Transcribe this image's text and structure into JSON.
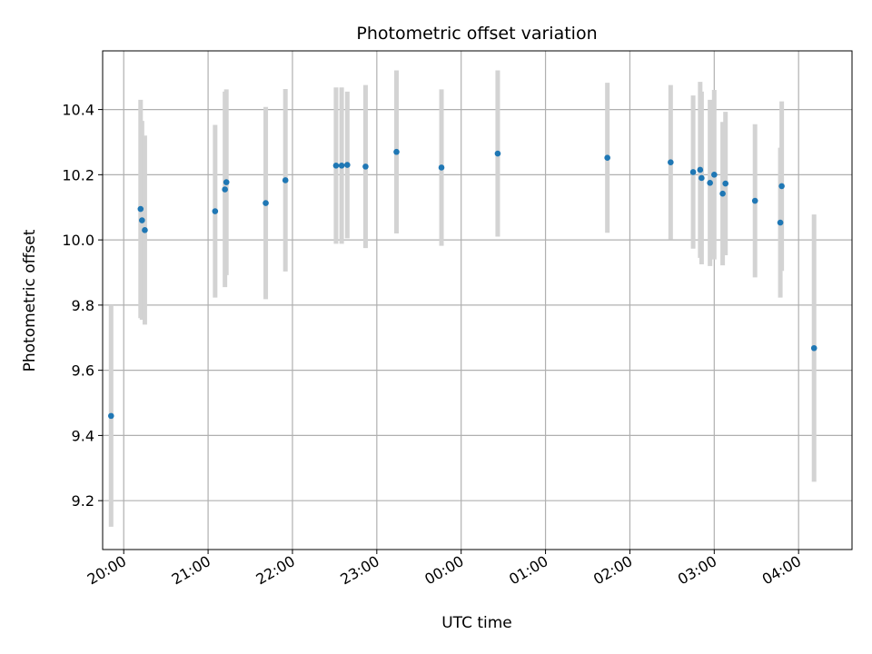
{
  "chart_data": {
    "type": "scatter",
    "title": "Photometric offset variation",
    "xlabel": "UTC time",
    "ylabel": "Photometric offset",
    "x_is_time": true,
    "xlim": [
      "19:45",
      "04:38"
    ],
    "ylim": [
      9.05,
      10.58
    ],
    "yticks": [
      9.2,
      9.4,
      9.6,
      9.8,
      10.0,
      10.2,
      10.4
    ],
    "xticks": [
      "20:00",
      "21:00",
      "22:00",
      "23:00",
      "00:00",
      "01:00",
      "02:00",
      "03:00",
      "04:00"
    ],
    "grid": true,
    "point_color": "#1f77b4",
    "errorbar_color": "#d3d3d3",
    "points": [
      {
        "x": "19:51",
        "y": 9.46,
        "err": 0.34
      },
      {
        "x": "20:12",
        "y": 10.095,
        "err": 0.335
      },
      {
        "x": "20:13",
        "y": 10.06,
        "err": 0.305
      },
      {
        "x": "20:15",
        "y": 10.03,
        "err": 0.29
      },
      {
        "x": "21:05",
        "y": 10.088,
        "err": 0.265
      },
      {
        "x": "21:12",
        "y": 10.155,
        "err": 0.3
      },
      {
        "x": "21:13",
        "y": 10.177,
        "err": 0.285
      },
      {
        "x": "21:41",
        "y": 10.113,
        "err": 0.295
      },
      {
        "x": "21:55",
        "y": 10.183,
        "err": 0.28
      },
      {
        "x": "22:31",
        "y": 10.228,
        "err": 0.24
      },
      {
        "x": "22:35",
        "y": 10.228,
        "err": 0.24
      },
      {
        "x": "22:39",
        "y": 10.23,
        "err": 0.225
      },
      {
        "x": "22:52",
        "y": 10.225,
        "err": 0.25
      },
      {
        "x": "23:14",
        "y": 10.27,
        "err": 0.25
      },
      {
        "x": "23:46",
        "y": 10.222,
        "err": 0.24
      },
      {
        "x": "00:26",
        "y": 10.265,
        "err": 0.255
      },
      {
        "x": "01:44",
        "y": 10.252,
        "err": 0.23
      },
      {
        "x": "02:29",
        "y": 10.238,
        "err": 0.237
      },
      {
        "x": "02:45",
        "y": 10.208,
        "err": 0.235
      },
      {
        "x": "02:50",
        "y": 10.215,
        "err": 0.27
      },
      {
        "x": "02:51",
        "y": 10.19,
        "err": 0.265
      },
      {
        "x": "02:57",
        "y": 10.175,
        "err": 0.255
      },
      {
        "x": "03:00",
        "y": 10.2,
        "err": 0.26
      },
      {
        "x": "03:06",
        "y": 10.142,
        "err": 0.22
      },
      {
        "x": "03:08",
        "y": 10.173,
        "err": 0.22
      },
      {
        "x": "03:29",
        "y": 10.12,
        "err": 0.235
      },
      {
        "x": "03:47",
        "y": 10.053,
        "err": 0.23
      },
      {
        "x": "03:48",
        "y": 10.165,
        "err": 0.26
      },
      {
        "x": "04:11",
        "y": 9.668,
        "err": 0.41
      }
    ]
  }
}
